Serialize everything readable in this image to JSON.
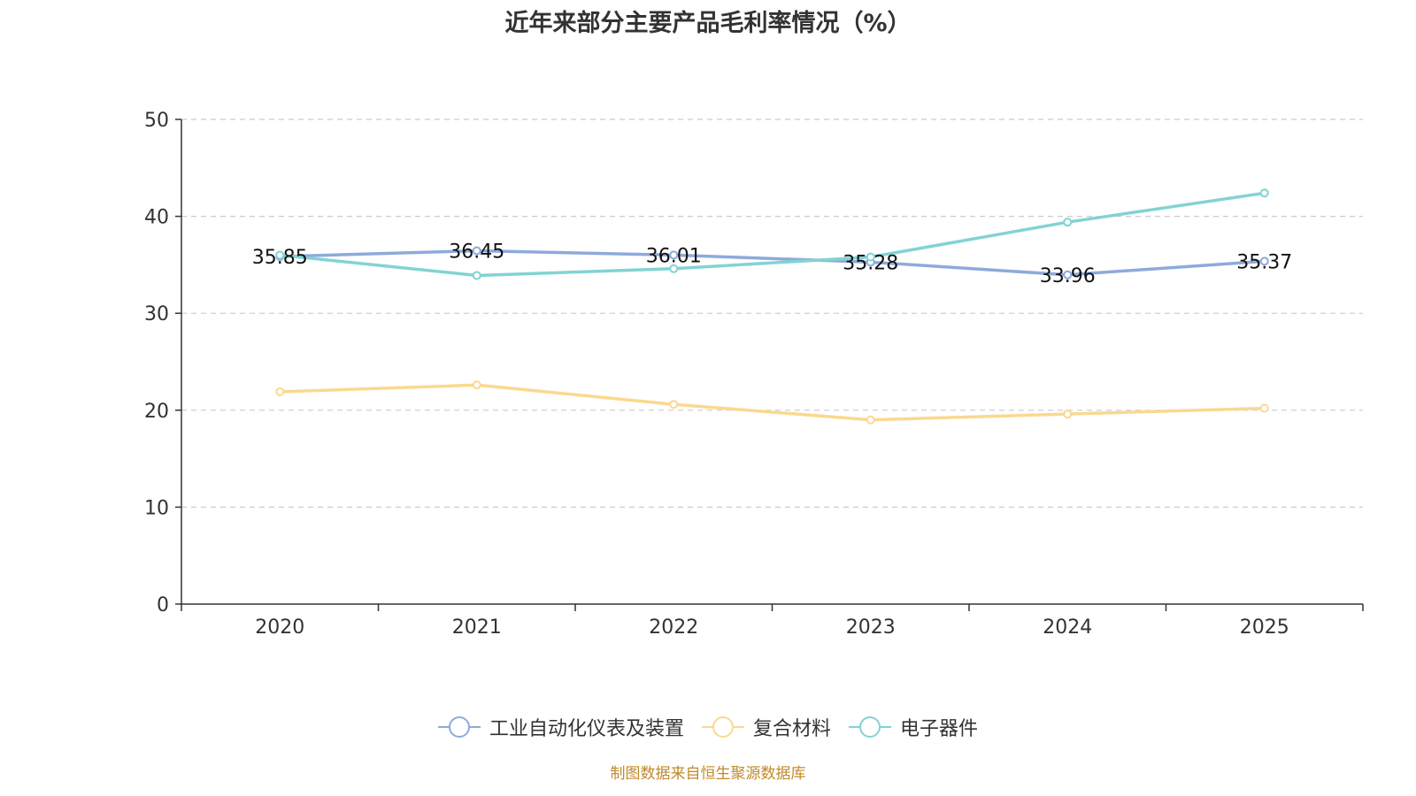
{
  "chart_data": {
    "type": "line",
    "title": "近年来部分主要产品毛利率情况（%）",
    "categories": [
      "2020",
      "2021",
      "2022",
      "2023",
      "2024",
      "2025"
    ],
    "ylim": [
      0,
      50
    ],
    "yticks": [
      0,
      10,
      20,
      30,
      40,
      50
    ],
    "grid": true,
    "legend_position": "bottom",
    "series": [
      {
        "name": "工业自动化仪表及装置",
        "color": "#8eaadb",
        "values": [
          35.85,
          36.45,
          36.01,
          35.28,
          33.96,
          35.37
        ],
        "labels": [
          "35.85",
          "36.45",
          "36.01",
          "35.28",
          "33.96",
          "35.37"
        ]
      },
      {
        "name": "复合材料",
        "color": "#fbd88f",
        "values": [
          21.9,
          22.6,
          20.6,
          19.0,
          19.6,
          20.2
        ]
      },
      {
        "name": "电子器件",
        "color": "#82d3d3",
        "values": [
          36.0,
          33.9,
          34.6,
          35.8,
          39.4,
          42.4
        ]
      }
    ]
  },
  "source": "制图数据来自恒生聚源数据库"
}
